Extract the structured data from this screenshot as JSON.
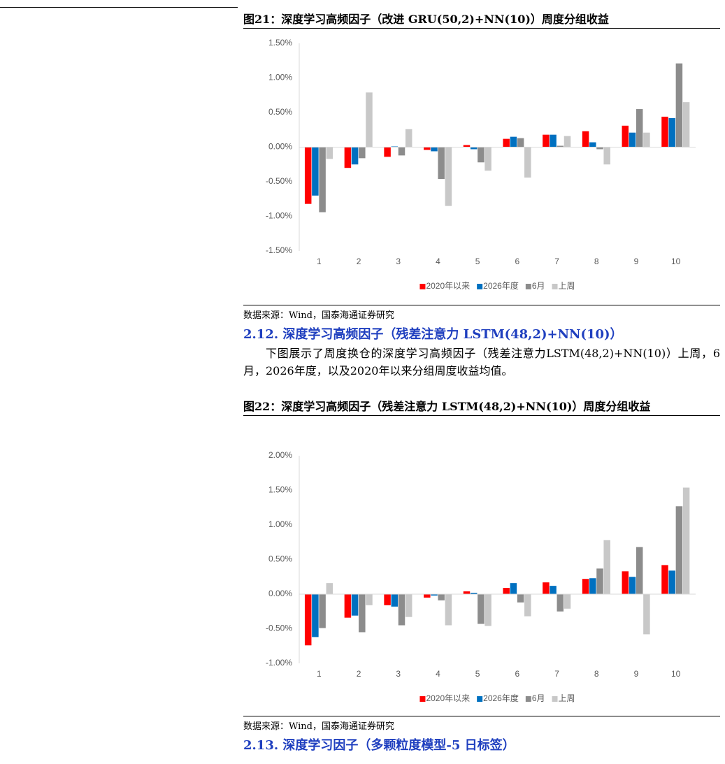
{
  "chart_data": [
    {
      "type": "bar",
      "title": "图21：深度学习高频因子（改进 GRU(50,2)+NN(10)）周度分组收益",
      "source": "数据来源：Wind，国泰海通证券研究",
      "categories": [
        "1",
        "2",
        "3",
        "4",
        "5",
        "6",
        "7",
        "8",
        "9",
        "10"
      ],
      "series": [
        {
          "name": "2020年以来",
          "color": "#ff0000",
          "values": [
            -0.82,
            -0.3,
            -0.14,
            -0.04,
            0.03,
            0.12,
            0.18,
            0.23,
            0.31,
            0.44
          ]
        },
        {
          "name": "2026年度",
          "color": "#0070c0",
          "values": [
            -0.7,
            -0.25,
            0.01,
            -0.06,
            -0.03,
            0.15,
            0.18,
            0.07,
            0.21,
            0.42
          ]
        },
        {
          "name": "6月",
          "color": "#8c8c8c",
          "values": [
            -0.94,
            -0.16,
            -0.12,
            -0.46,
            -0.22,
            0.13,
            0.02,
            -0.03,
            0.55,
            1.21
          ]
        },
        {
          "name": "上周",
          "color": "#c8c8c8",
          "values": [
            -0.17,
            0.79,
            0.26,
            -0.85,
            -0.34,
            -0.44,
            0.16,
            -0.25,
            0.21,
            0.65
          ]
        }
      ],
      "ylim": [
        -1.5,
        1.5
      ],
      "yticks": [
        {
          "value": -1.5,
          "label": "-1.50%"
        },
        {
          "value": -1,
          "label": "-1.00%"
        },
        {
          "value": -0.5,
          "label": "-0.50%"
        },
        {
          "value": 0,
          "label": "0.00%"
        },
        {
          "value": 0.5,
          "label": "0.50%"
        },
        {
          "value": 1,
          "label": "1.00%"
        },
        {
          "value": 1.5,
          "label": "1.50%"
        }
      ],
      "legend": "bottom"
    },
    {
      "type": "bar",
      "title": "图22：深度学习高频因子（残差注意力 LSTM(48,2)+NN(10)）周度分组收益",
      "source": "数据来源：Wind，国泰海通证券研究",
      "categories": [
        "1",
        "2",
        "3",
        "4",
        "5",
        "6",
        "7",
        "8",
        "9",
        "10"
      ],
      "series": [
        {
          "name": "2020年以来",
          "color": "#ff0000",
          "values": [
            -0.74,
            -0.34,
            -0.16,
            -0.05,
            0.04,
            0.09,
            0.17,
            0.22,
            0.33,
            0.42
          ]
        },
        {
          "name": "2026年度",
          "color": "#0070c0",
          "values": [
            -0.62,
            -0.31,
            -0.18,
            -0.02,
            0.02,
            0.16,
            0.12,
            0.23,
            0.25,
            0.34
          ]
        },
        {
          "name": "6月",
          "color": "#8c8c8c",
          "values": [
            -0.49,
            -0.55,
            -0.45,
            -0.09,
            -0.43,
            -0.12,
            -0.25,
            0.37,
            0.68,
            1.27
          ]
        },
        {
          "name": "上周",
          "color": "#c8c8c8",
          "values": [
            0.16,
            -0.16,
            -0.33,
            -0.45,
            -0.46,
            -0.32,
            -0.21,
            0.78,
            -0.58,
            1.54
          ]
        }
      ],
      "ylim": [
        -1,
        2
      ],
      "yticks": [
        {
          "value": -1,
          "label": "-1.00%"
        },
        {
          "value": -0.5,
          "label": "-0.50%"
        },
        {
          "value": 0,
          "label": "0.00%"
        },
        {
          "value": 0.5,
          "label": "0.50%"
        },
        {
          "value": 1,
          "label": "1.00%"
        },
        {
          "value": 1.5,
          "label": "1.50%"
        },
        {
          "value": 2,
          "label": "2.00%"
        }
      ],
      "legend": "bottom"
    }
  ],
  "sections": [
    {
      "heading": "2.12. 深度学习高频因子（残差注意力 LSTM(48,2)+NN(10)）",
      "paragraph": "下图展示了周度换仓的深度学习高频因子（残差注意力LSTM(48,2)+NN(10)）上周，6月，2026年度，以及2020年以来分组周度收益均值。"
    },
    {
      "heading": "2.13. 深度学习因子（多颗粒度模型-5 日标签）"
    }
  ]
}
